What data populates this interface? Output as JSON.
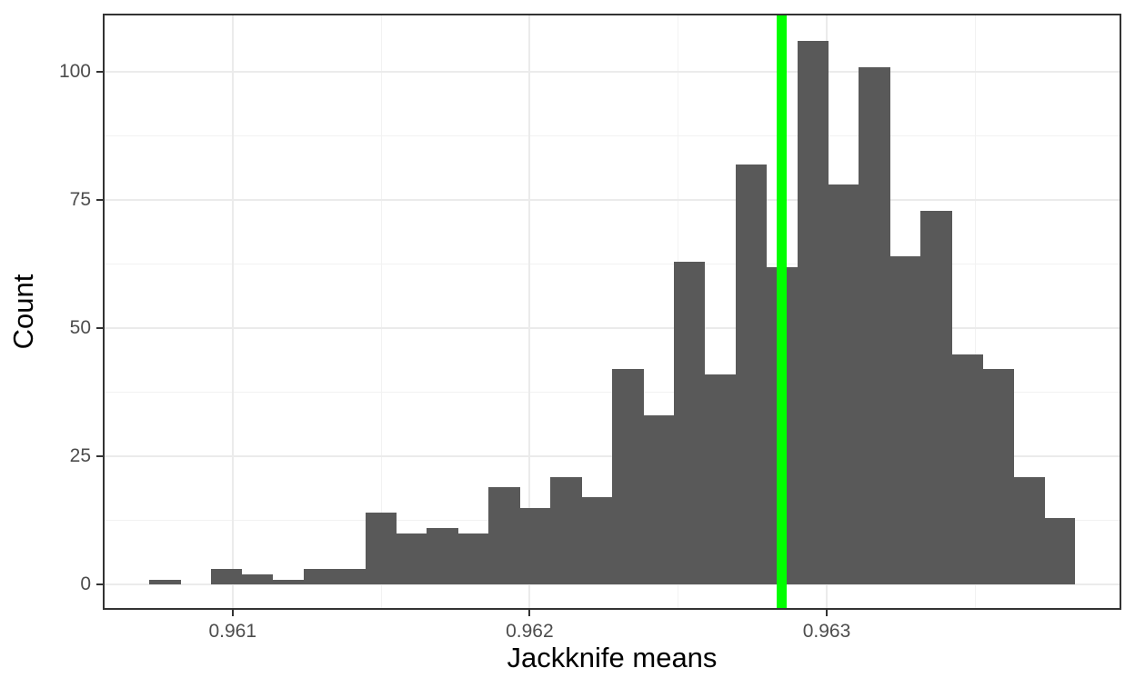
{
  "chart_data": {
    "type": "bar",
    "subtype": "histogram",
    "title": "",
    "xlabel": "Jackknife means",
    "ylabel": "Count",
    "bin_start": 0.960719,
    "bin_width": 0.0001039,
    "counts": [
      1,
      0,
      3,
      2,
      1,
      3,
      3,
      14,
      10,
      11,
      10,
      19,
      15,
      21,
      17,
      42,
      33,
      63,
      41,
      82,
      62,
      106,
      78,
      101,
      64,
      73,
      45,
      42,
      21,
      13
    ],
    "vline_x": 0.962849,
    "x_ticks": [
      0.961,
      0.962,
      0.963
    ],
    "x_tick_labels": [
      "0.961",
      "0.962",
      "0.963"
    ],
    "x_minor_ticks": [
      0.9615,
      0.9625,
      0.9635
    ],
    "y_ticks": [
      0,
      25,
      50,
      75,
      100
    ],
    "y_tick_labels": [
      "0",
      "25",
      "50",
      "75",
      "100"
    ],
    "y_minor_ticks": [
      12.5,
      37.5,
      62.5,
      87.5
    ],
    "x_range": [
      0.960563,
      0.963992
    ],
    "y_range": [
      -4.9,
      111.4
    ],
    "grid": true,
    "legend": "none",
    "colors": {
      "bar": "#595959",
      "vline": "#00FF00",
      "grid_major": "#ebebeb",
      "grid_minor": "#f2f2f2",
      "panel_border": "#333333",
      "panel_background": "#ffffff",
      "tick_mark": "#333333",
      "tick_label": "#4d4d4d",
      "axis_title": "#000000",
      "background": "#ffffff"
    }
  }
}
